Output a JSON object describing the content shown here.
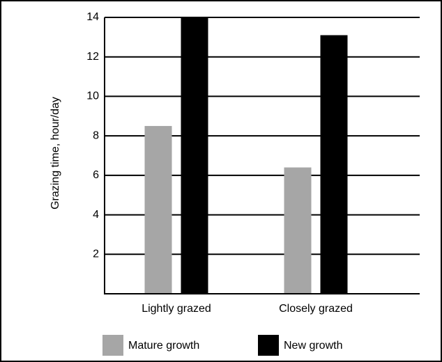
{
  "chart_data": {
    "type": "bar",
    "y_label": "Grazing time, hour/day",
    "categories": [
      "Lightly grazed",
      "Closely grazed"
    ],
    "series": [
      {
        "name": "Mature growth",
        "color": "#a6a6a6",
        "values": [
          8.5,
          6.4
        ]
      },
      {
        "name": "New growth",
        "color": "#000000",
        "values": [
          14,
          13.1
        ]
      }
    ],
    "ylim": [
      0,
      14
    ],
    "yticks": [
      2,
      4,
      6,
      8,
      10,
      12,
      14
    ],
    "grid": true
  }
}
